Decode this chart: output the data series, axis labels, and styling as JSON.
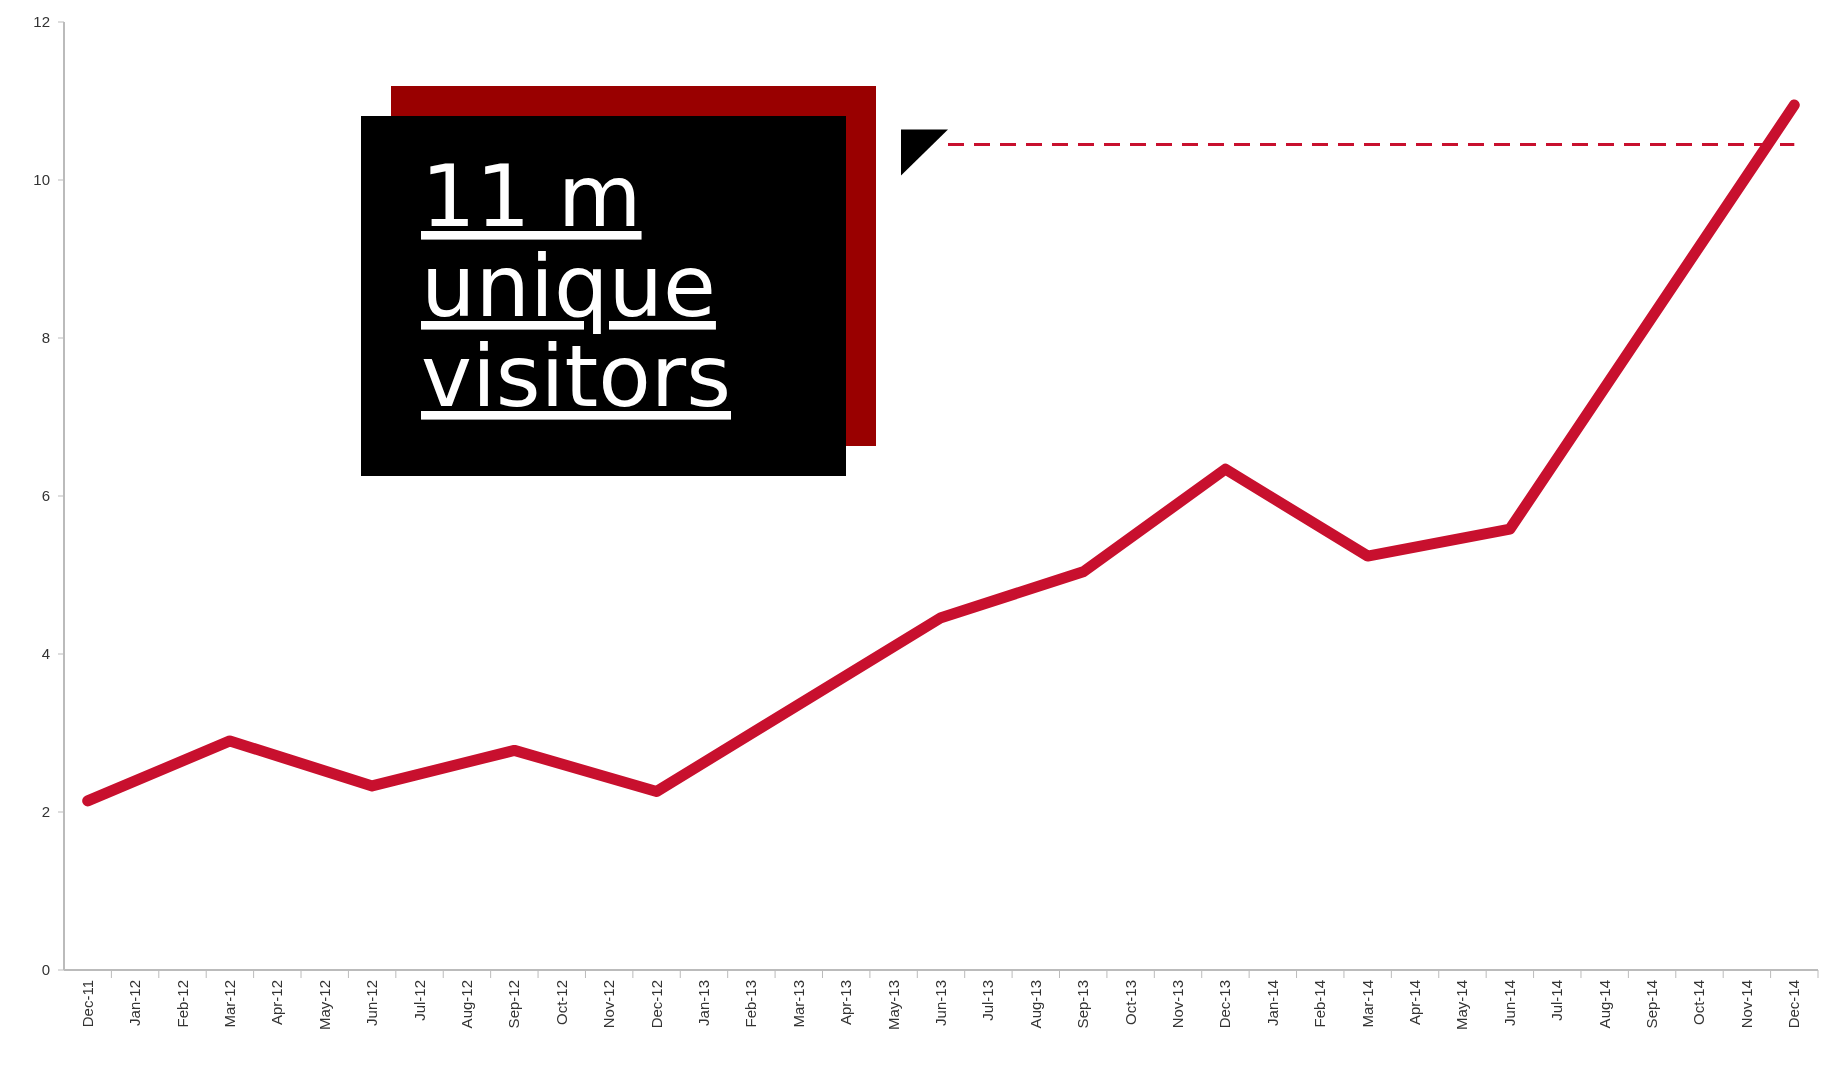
{
  "chart_data": {
    "type": "line",
    "categories": [
      "Dec-11",
      "Jan-12",
      "Feb-12",
      "Mar-12",
      "Apr-12",
      "May-12",
      "Jun-12",
      "Jul-12",
      "Aug-12",
      "Sep-12",
      "Oct-12",
      "Nov-12",
      "Dec-12",
      "Jan-13",
      "Feb-13",
      "Mar-13",
      "Apr-13",
      "May-13",
      "Jun-13",
      "Jul-13",
      "Aug-13",
      "Sep-13",
      "Oct-13",
      "Nov-13",
      "Dec-13",
      "Jan-14",
      "Feb-14",
      "Mar-14",
      "Apr-14",
      "May-14",
      "Jun-14",
      "Jul-14",
      "Aug-14",
      "Sep-14",
      "Oct-14",
      "Nov-14",
      "Dec-14"
    ],
    "series": [
      {
        "color": "#c8102e",
        "x": [
          "Dec-11",
          "Mar-12",
          "Jun-12",
          "Sep-12",
          "Dec-12",
          "Jun-13",
          "Sep-13",
          "Dec-13",
          "Mar-14",
          "Jun-14",
          "Dec-14"
        ],
        "values": [
          2.14,
          2.9,
          2.33,
          2.78,
          2.26,
          4.46,
          5.04,
          6.34,
          5.24,
          5.58,
          10.95
        ]
      }
    ],
    "ylim": [
      0,
      12
    ],
    "yticks": [
      0,
      2,
      4,
      6,
      8,
      10,
      12
    ],
    "grid": false,
    "marker": "none",
    "line_style": "solid",
    "ref_lines": [
      {
        "axis": "y",
        "value": 10.45,
        "color": "#c8102e",
        "line_style": "dashed"
      }
    ],
    "annotations": [
      "11 m\nunique\nvisitors"
    ]
  }
}
